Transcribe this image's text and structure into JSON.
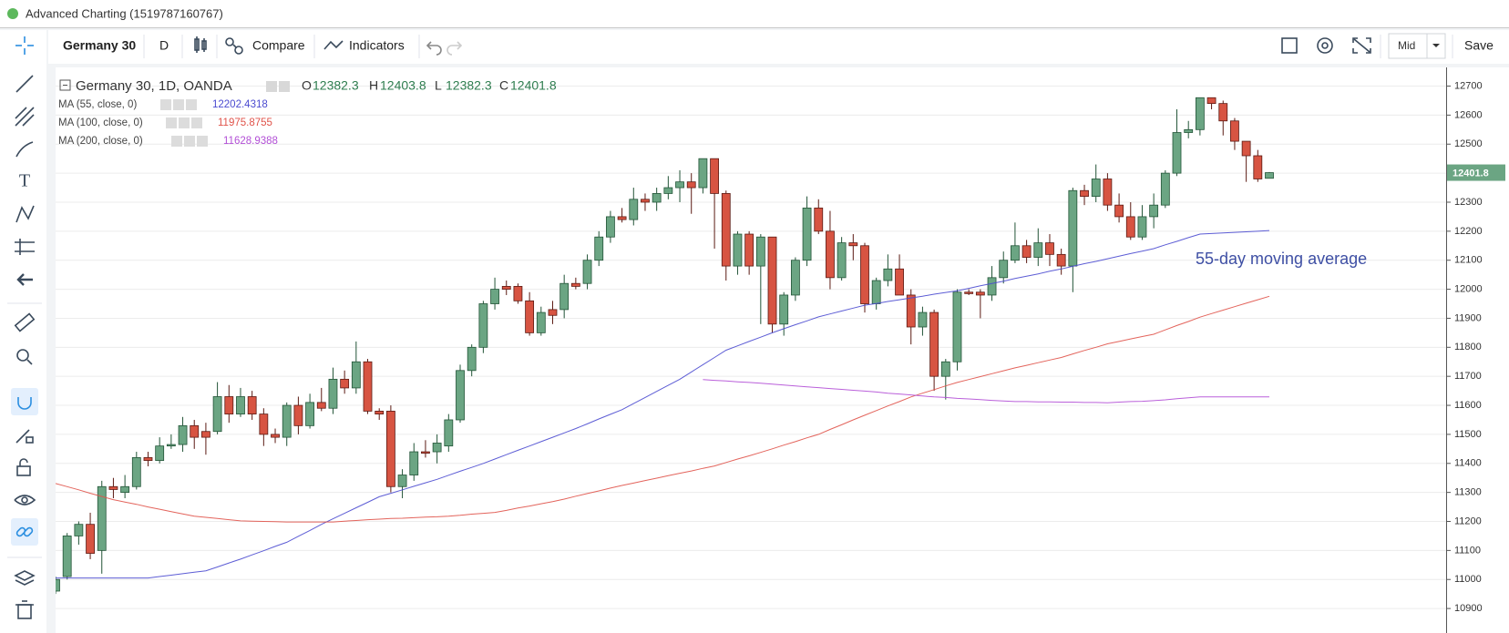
{
  "window": {
    "title": "Advanced Charting (1519787160767)"
  },
  "toolbar": {
    "symbol": "Germany 30",
    "interval": "D",
    "compare": "Compare",
    "indicators": "Indicators",
    "price_source": "Mid",
    "save": "Save"
  },
  "chart_data": {
    "type": "candlestick",
    "title": "Germany 30, 1D, OANDA",
    "ohlc_labels": [
      "O",
      "H",
      "L",
      "C"
    ],
    "up_color": "#6ba583",
    "down_color": "#d75442",
    "open": [
      10960,
      11010,
      11150,
      11190,
      11100,
      11320,
      11300,
      11320,
      11420,
      11410,
      11460,
      11465,
      11530,
      11510,
      11510,
      11630,
      11570,
      11630,
      11570,
      11500,
      11490,
      11600,
      11530,
      11610,
      11590,
      11690,
      11660,
      11750,
      11580,
      11580,
      11320,
      11360,
      11440,
      11440,
      11460,
      11550,
      11720,
      11800,
      11950,
      12010,
      12010,
      11960,
      11850,
      11930,
      11930,
      12020,
      12020,
      12100,
      12180,
      12250,
      12240,
      12310,
      12300,
      12330,
      12350,
      12370,
      12350,
      12450,
      12330,
      12080,
      12190,
      12080,
      12180,
      11880,
      11980,
      12100,
      12280,
      12200,
      12040,
      12160,
      12150,
      11950,
      12030,
      12070,
      11980,
      11870,
      11920,
      11700,
      11750,
      11990,
      11990,
      11980,
      12040,
      12100,
      12150,
      12110,
      12160,
      12120,
      12080,
      12340,
      12320,
      12380,
      12290,
      12250,
      12180,
      12250,
      12290,
      12400,
      12540,
      12550,
      12660,
      12640,
      12580,
      12510,
      12460,
      12382.3
    ],
    "high": [
      11010,
      11160,
      11200,
      11230,
      11340,
      11350,
      11360,
      11440,
      11440,
      11490,
      11500,
      11560,
      11550,
      11540,
      11680,
      11670,
      11660,
      11650,
      11590,
      11520,
      11610,
      11630,
      11640,
      11660,
      11730,
      11720,
      11820,
      11760,
      11590,
      11600,
      11380,
      11470,
      11480,
      11500,
      11570,
      11740,
      11810,
      11960,
      12040,
      12030,
      12020,
      11990,
      11940,
      11960,
      12050,
      12040,
      12120,
      12200,
      12270,
      12280,
      12350,
      12330,
      12350,
      12390,
      12410,
      12400,
      12450,
      12450,
      12340,
      12200,
      12200,
      12190,
      12180,
      11990,
      12110,
      12320,
      12310,
      12270,
      12180,
      12190,
      12160,
      12040,
      12120,
      12120,
      12000,
      11940,
      11930,
      11760,
      12000,
      12000,
      12000,
      12080,
      12130,
      12230,
      12170,
      12210,
      12190,
      12140,
      12350,
      12360,
      12430,
      12400,
      12330,
      12300,
      12290,
      12330,
      12410,
      12620,
      12580,
      12660,
      12660,
      12650,
      12590,
      12510,
      12480,
      12403.8
    ],
    "low": [
      10950,
      11000,
      11120,
      11070,
      11020,
      11280,
      11280,
      11310,
      11390,
      11400,
      11450,
      11440,
      11450,
      11430,
      11500,
      11540,
      11560,
      11550,
      11460,
      11470,
      11460,
      11500,
      11520,
      11580,
      11570,
      11640,
      11640,
      11570,
      11550,
      11300,
      11280,
      11340,
      11420,
      11400,
      11440,
      11540,
      11700,
      11780,
      11930,
      11980,
      11950,
      11840,
      11840,
      11880,
      11900,
      12000,
      12000,
      12080,
      12160,
      12230,
      12220,
      12270,
      12270,
      12310,
      12300,
      12260,
      12330,
      12140,
      12030,
      12050,
      12050,
      11880,
      11850,
      11840,
      11960,
      12080,
      12190,
      12000,
      12030,
      12100,
      11920,
      11930,
      12010,
      11980,
      11810,
      11840,
      11650,
      11620,
      11720,
      11980,
      11900,
      11960,
      12020,
      12090,
      12090,
      12080,
      12080,
      12050,
      11990,
      12290,
      12300,
      12270,
      12230,
      12170,
      12170,
      12210,
      12280,
      12390,
      12520,
      12530,
      12620,
      12530,
      12480,
      12370,
      12370,
      12382.3
    ],
    "close": [
      11000,
      11150,
      11190,
      11090,
      11320,
      11310,
      11320,
      11420,
      11410,
      11460,
      11465,
      11530,
      11490,
      11490,
      11630,
      11570,
      11630,
      11570,
      11500,
      11490,
      11600,
      11530,
      11610,
      11590,
      11690,
      11660,
      11750,
      11580,
      11570,
      11320,
      11360,
      11440,
      11435,
      11470,
      11550,
      11720,
      11800,
      11950,
      12000,
      12000,
      11960,
      11850,
      11920,
      11910,
      12020,
      12010,
      12100,
      12180,
      12250,
      12240,
      12310,
      12300,
      12330,
      12350,
      12370,
      12350,
      12450,
      12330,
      12080,
      12190,
      12080,
      12180,
      11880,
      11980,
      12100,
      12280,
      12200,
      12040,
      12160,
      12150,
      11950,
      12030,
      12070,
      11980,
      11870,
      11920,
      11700,
      11750,
      11990,
      11985,
      11980,
      12040,
      12100,
      12150,
      12110,
      12160,
      12120,
      12080,
      12340,
      12320,
      12380,
      12290,
      12250,
      12180,
      12250,
      12290,
      12400,
      12540,
      12550,
      12660,
      12640,
      12580,
      12510,
      12460,
      12380,
      12401.8
    ],
    "series": [
      {
        "name": "MA (55, close, 0)",
        "color": "#4b4bd0",
        "values": [
          11005,
          11005,
          11005,
          11005,
          11005,
          11005,
          11005,
          11005,
          11005,
          11010,
          11015,
          11020,
          11025,
          11030,
          11043,
          11057,
          11070,
          11085,
          11099,
          11114,
          11128,
          11149,
          11169,
          11190,
          11209,
          11228,
          11247,
          11266,
          11285,
          11297,
          11309,
          11321,
          11333,
          11345,
          11359,
          11373,
          11386,
          11400,
          11415,
          11430,
          11445,
          11460,
          11475,
          11490,
          11505,
          11520,
          11536,
          11553,
          11569,
          11585,
          11606,
          11627,
          11648,
          11669,
          11690,
          11715,
          11740,
          11765,
          11790,
          11805,
          11820,
          11835,
          11850,
          11864,
          11878,
          11891,
          11905,
          11915,
          11925,
          11935,
          11945,
          11951,
          11958,
          11964,
          11970,
          11976,
          11983,
          11989,
          11995,
          12003,
          12012,
          12020,
          12028,
          12037,
          12045,
          12053,
          12062,
          12070,
          12079,
          12088,
          12096,
          12105,
          12114,
          12123,
          12131,
          12140,
          12153,
          12165,
          12178,
          12190,
          12192,
          12194,
          12196,
          12198,
          12200,
          12202.4318
        ]
      },
      {
        "name": "MA (100, close, 0)",
        "color": "#e0534a",
        "values": [
          11331,
          11320,
          11309,
          11297,
          11286,
          11275,
          11267,
          11259,
          11250,
          11242,
          11234,
          11226,
          11218,
          11214,
          11210,
          11206,
          11202,
          11201,
          11200,
          11199,
          11198,
          11198,
          11198,
          11198,
          11198,
          11201,
          11203,
          11206,
          11208,
          11210,
          11211,
          11213,
          11215,
          11216,
          11218,
          11221,
          11225,
          11228,
          11231,
          11238,
          11246,
          11253,
          11261,
          11268,
          11277,
          11287,
          11296,
          11305,
          11315,
          11324,
          11332,
          11341,
          11349,
          11358,
          11366,
          11374,
          11383,
          11391,
          11403,
          11415,
          11426,
          11438,
          11450,
          11463,
          11475,
          11488,
          11500,
          11517,
          11533,
          11550,
          11566,
          11582,
          11598,
          11613,
          11629,
          11642,
          11654,
          11667,
          11679,
          11689,
          11699,
          11709,
          11719,
          11729,
          11738,
          11747,
          11756,
          11765,
          11777,
          11789,
          11800,
          11812,
          11820,
          11829,
          11837,
          11845,
          11860,
          11875,
          11889,
          11904,
          11916,
          11928,
          11940,
          11952,
          11964,
          11975.8755
        ]
      },
      {
        "name": "MA (200, close, 0)",
        "color": "#b24fd6",
        "values": [
          null,
          null,
          null,
          null,
          null,
          null,
          null,
          null,
          null,
          null,
          null,
          null,
          null,
          null,
          null,
          null,
          null,
          null,
          null,
          null,
          null,
          null,
          null,
          null,
          null,
          null,
          null,
          null,
          null,
          null,
          null,
          null,
          null,
          null,
          null,
          null,
          null,
          null,
          null,
          null,
          null,
          null,
          null,
          null,
          null,
          null,
          null,
          null,
          null,
          null,
          null,
          null,
          null,
          null,
          null,
          null,
          11689,
          11686,
          11684,
          11681,
          11679,
          11676,
          11673,
          11670,
          11667,
          11664,
          11661,
          11658,
          11655,
          11652,
          11649,
          11646,
          11642,
          11639,
          11636,
          11632,
          11629,
          11627,
          11624,
          11622,
          11620,
          11617,
          11615,
          11613,
          11613,
          11612,
          11612,
          11611,
          11611,
          11610,
          11610,
          11609,
          11611,
          11613,
          11614,
          11616,
          11619,
          11623,
          11626,
          11629,
          11629,
          11629,
          11629,
          11629,
          11629,
          11628.9388
        ]
      }
    ],
    "annotation": "55-day moving average",
    "ylim": [
      10825,
      12755
    ],
    "yticks": [
      10900,
      11000,
      11100,
      11200,
      11300,
      11400,
      11500,
      11600,
      11700,
      11800,
      11900,
      12000,
      12100,
      12200,
      12300,
      12400,
      12500,
      12600,
      12700
    ],
    "grid": true
  }
}
